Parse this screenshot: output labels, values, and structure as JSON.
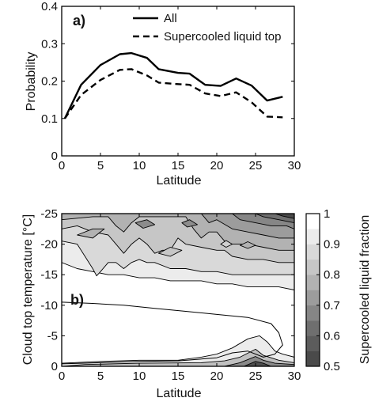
{
  "chart_data": [
    {
      "type": "line",
      "panel_label": "a)",
      "xlabel": "Latitude",
      "ylabel": "Probability",
      "xlim": [
        0,
        30
      ],
      "ylim": [
        0,
        0.4
      ],
      "xticks": [
        "0",
        "5",
        "10",
        "15",
        "20",
        "25",
        "30"
      ],
      "yticks": [
        "0",
        "0.1",
        "0.2",
        "0.3",
        "0.4"
      ],
      "legend_position": "top-right",
      "x": [
        0.4,
        2.5,
        5,
        7.5,
        9,
        11,
        12.5,
        15,
        16.5,
        18.5,
        20.5,
        22.5,
        24.5,
        26.5,
        28.5
      ],
      "series": [
        {
          "name": "All",
          "style": "solid",
          "values": [
            0.1,
            0.19,
            0.243,
            0.272,
            0.275,
            0.262,
            0.232,
            0.222,
            0.22,
            0.19,
            0.187,
            0.207,
            0.188,
            0.148,
            0.158
          ]
        },
        {
          "name": "Supercooled liquid top",
          "style": "dashed",
          "values": [
            0.1,
            0.163,
            0.203,
            0.23,
            0.232,
            0.215,
            0.196,
            0.192,
            0.19,
            0.167,
            0.16,
            0.17,
            0.143,
            0.105,
            0.103
          ]
        }
      ]
    },
    {
      "type": "heatmap",
      "subtype": "filled-contour",
      "panel_label": "b)",
      "xlabel": "Latitude",
      "ylabel": "Cloud top temperature [°C]",
      "xlim": [
        0,
        30
      ],
      "ylim": [
        0,
        -25
      ],
      "xticks": [
        "0",
        "5",
        "10",
        "15",
        "20",
        "25",
        "30"
      ],
      "yticks": [
        "-25",
        "-20",
        "-15",
        "-10",
        "-5",
        "0"
      ],
      "colorbar": {
        "label": "Supercooled liquid fraction",
        "range": [
          0.5,
          1
        ],
        "ticks": [
          "0.5",
          "0.6",
          "0.7",
          "0.8",
          "0.9",
          "1"
        ],
        "colors": [
          "#4a4a4a",
          "#5c5c5c",
          "#6f6f6f",
          "#868686",
          "#9c9c9c",
          "#b2b2b2",
          "#c6c6c6",
          "#d9d9d9",
          "#ececec",
          "#ffffff"
        ]
      },
      "bands": [
        {
          "level": 0.95,
          "color": "#ececec",
          "points": [
            [
              0,
              -17
            ],
            [
              2,
              -16
            ],
            [
              4,
              -15.5
            ],
            [
              6,
              -15
            ],
            [
              8,
              -15
            ],
            [
              10,
              -14.5
            ],
            [
              12,
              -14.5
            ],
            [
              14,
              -14
            ],
            [
              16,
              -14
            ],
            [
              18,
              -14
            ],
            [
              20,
              -13.5
            ],
            [
              22,
              -13.5
            ],
            [
              24,
              -13
            ],
            [
              26,
              -13
            ],
            [
              28,
              -13
            ],
            [
              30,
              -12.5
            ],
            [
              30,
              -25
            ],
            [
              0,
              -25
            ]
          ]
        },
        {
          "level": 0.9,
          "color": "#d9d9d9",
          "points": [
            [
              0,
              -20.5
            ],
            [
              2,
              -20
            ],
            [
              3,
              -18
            ],
            [
              4,
              -16
            ],
            [
              4.5,
              -14.8
            ],
            [
              5,
              -15.5
            ],
            [
              6,
              -17
            ],
            [
              7,
              -17
            ],
            [
              8,
              -16
            ],
            [
              9,
              -17
            ],
            [
              10,
              -17.5
            ],
            [
              11,
              -17
            ],
            [
              12,
              -17
            ],
            [
              14,
              -16
            ],
            [
              16,
              -16
            ],
            [
              18,
              -15.5
            ],
            [
              20,
              -15.5
            ],
            [
              22,
              -15
            ],
            [
              24,
              -15
            ],
            [
              26,
              -15
            ],
            [
              28,
              -15
            ],
            [
              30,
              -15
            ],
            [
              30,
              -25
            ],
            [
              0,
              -25
            ]
          ]
        },
        {
          "level": 0.85,
          "color": "#c6c6c6",
          "points": [
            [
              0,
              -22.5
            ],
            [
              2,
              -23
            ],
            [
              4,
              -22
            ],
            [
              6,
              -21.5
            ],
            [
              7,
              -20
            ],
            [
              8,
              -18.5
            ],
            [
              9,
              -20
            ],
            [
              10,
              -21
            ],
            [
              11,
              -20
            ],
            [
              12,
              -18.5
            ],
            [
              13,
              -19
            ],
            [
              14,
              -19
            ],
            [
              15,
              -21
            ],
            [
              16,
              -20
            ],
            [
              18,
              -19.5
            ],
            [
              20,
              -19
            ],
            [
              21,
              -19
            ],
            [
              22,
              -18
            ],
            [
              24,
              -17.5
            ],
            [
              26,
              -17.5
            ],
            [
              28,
              -17
            ],
            [
              30,
              -17
            ],
            [
              30,
              -25
            ],
            [
              0,
              -25
            ]
          ]
        },
        {
          "level": 0.8,
          "color": "#b2b2b2",
          "points": [
            [
              0,
              -24
            ],
            [
              4,
              -24.5
            ],
            [
              6,
              -24.5
            ],
            [
              7,
              -23
            ],
            [
              8,
              -22
            ],
            [
              9,
              -23.5
            ],
            [
              10,
              -24.5
            ],
            [
              14,
              -24.5
            ],
            [
              16,
              -24.5
            ],
            [
              17,
              -22.5
            ],
            [
              18,
              -21
            ],
            [
              19,
              -22
            ],
            [
              20,
              -22
            ],
            [
              21,
              -20.5
            ],
            [
              22,
              -20
            ],
            [
              24,
              -20
            ],
            [
              26,
              -19.5
            ],
            [
              28,
              -19
            ],
            [
              30,
              -19
            ],
            [
              30,
              -25
            ],
            [
              0,
              -25
            ]
          ]
        },
        {
          "level": 0.75,
          "color": "#9c9c9c",
          "points": [
            [
              18,
              -25
            ],
            [
              19,
              -23.5
            ],
            [
              20,
              -24
            ],
            [
              22,
              -22.5
            ],
            [
              24,
              -22
            ],
            [
              26,
              -21.5
            ],
            [
              28,
              -21
            ],
            [
              30,
              -21
            ],
            [
              30,
              -25
            ]
          ]
        },
        {
          "level": 0.7,
          "color": "#868686",
          "points": [
            [
              22,
              -25
            ],
            [
              23,
              -24
            ],
            [
              25,
              -23.5
            ],
            [
              27,
              -23
            ],
            [
              29,
              -23
            ],
            [
              30,
              -22.5
            ],
            [
              30,
              -25
            ]
          ]
        },
        {
          "level": 0.65,
          "color": "#6f6f6f",
          "points": [
            [
              25,
              -25
            ],
            [
              26,
              -24.5
            ],
            [
              28,
              -24
            ],
            [
              30,
              -23.5
            ],
            [
              30,
              -25
            ]
          ]
        },
        {
          "level": 0.55,
          "color": "#4a4a4a",
          "points": [
            [
              27.5,
              -25
            ],
            [
              28.5,
              -24.6
            ],
            [
              30,
              -24.2
            ],
            [
              30,
              -25
            ]
          ]
        },
        {
          "level": 0.95,
          "color": "#ececec",
          "points": [
            [
              0,
              0
            ],
            [
              0,
              -0.5
            ],
            [
              5,
              -0.8
            ],
            [
              10,
              -1
            ],
            [
              15,
              -1
            ],
            [
              18,
              -1.5
            ],
            [
              20,
              -2
            ],
            [
              22,
              -3
            ],
            [
              24,
              -4.5
            ],
            [
              25.5,
              -5
            ],
            [
              26.5,
              -4
            ],
            [
              27.5,
              -2.5
            ],
            [
              28.5,
              -2
            ],
            [
              30,
              -1.5
            ],
            [
              30,
              0
            ]
          ]
        },
        {
          "level": 0.85,
          "color": "#c0c0c0",
          "points": [
            [
              0,
              0
            ],
            [
              3,
              -0.3
            ],
            [
              10,
              -0.5
            ],
            [
              18,
              -0.6
            ],
            [
              21,
              -0.9
            ],
            [
              23,
              -1.5
            ],
            [
              25,
              -2.8
            ],
            [
              26,
              -1.8
            ],
            [
              28,
              -1
            ],
            [
              30,
              -0.6
            ],
            [
              30,
              0
            ]
          ]
        },
        {
          "level": 0.7,
          "color": "#8a8a8a",
          "points": [
            [
              21,
              0
            ],
            [
              23,
              -0.6
            ],
            [
              25,
              -1.6
            ],
            [
              26,
              -1
            ],
            [
              27.5,
              -0.5
            ],
            [
              30,
              -0.3
            ],
            [
              30,
              0
            ]
          ]
        },
        {
          "level": 0.55,
          "color": "#4e4e4e",
          "points": [
            [
              23.5,
              0
            ],
            [
              25,
              -0.8
            ],
            [
              26,
              -0.5
            ],
            [
              27,
              0
            ]
          ]
        }
      ],
      "islands": [
        {
          "level": 0.85,
          "color": "#b2b2b2",
          "points": [
            [
              2,
              -21.5
            ],
            [
              4,
              -22.5
            ],
            [
              5.5,
              -22.5
            ],
            [
              4,
              -21
            ]
          ]
        },
        {
          "level": 0.75,
          "color": "#8c8c8c",
          "points": [
            [
              9.5,
              -23.5
            ],
            [
              11,
              -24
            ],
            [
              12,
              -23.2
            ],
            [
              10.5,
              -22.6
            ]
          ]
        },
        {
          "level": 0.75,
          "color": "#8c8c8c",
          "points": [
            [
              15.5,
              -23.5
            ],
            [
              16.5,
              -24
            ],
            [
              17.5,
              -23.2
            ],
            [
              16.2,
              -22.8
            ]
          ]
        },
        {
          "level": 0.9,
          "color": "#c6c6c6",
          "points": [
            [
              12.5,
              -18.5
            ],
            [
              14,
              -19.5
            ],
            [
              15.5,
              -19
            ],
            [
              14,
              -18
            ]
          ]
        },
        {
          "level": 0.85,
          "color": "#b2b2b2",
          "points": [
            [
              23,
              -19.8
            ],
            [
              24,
              -20.4
            ],
            [
              25,
              -19.8
            ],
            [
              24,
              -19.3
            ]
          ]
        },
        {
          "level": 0.9,
          "color": "#cfcfcf",
          "points": [
            [
              20.5,
              -20
            ],
            [
              21.2,
              -20.6
            ],
            [
              22,
              -20
            ],
            [
              21.2,
              -19.5
            ]
          ]
        }
      ],
      "lines": [
        {
          "level": 0.95,
          "points": [
            [
              0,
              -10.5
            ],
            [
              4,
              -10.3
            ],
            [
              8,
              -10
            ],
            [
              12,
              -9.5
            ],
            [
              16,
              -9
            ],
            [
              20,
              -8.5
            ],
            [
              24,
              -8
            ],
            [
              27,
              -7
            ],
            [
              28,
              -5.5
            ],
            [
              28.5,
              -3.5
            ],
            [
              27.5,
              -2
            ],
            [
              26,
              -1.5
            ],
            [
              24,
              -2.5
            ],
            [
              22,
              -2.2
            ],
            [
              20,
              -1.4
            ],
            [
              15,
              -0.9
            ],
            [
              10,
              -0.8
            ],
            [
              5,
              -0.6
            ],
            [
              0,
              -0.4
            ]
          ]
        }
      ]
    }
  ]
}
